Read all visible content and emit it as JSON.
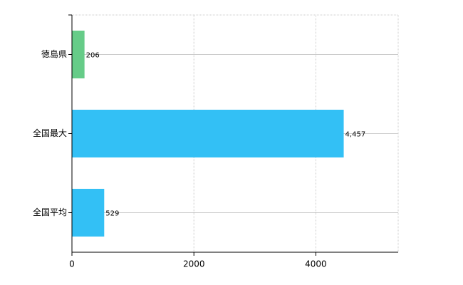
{
  "chart_data": {
    "type": "bar",
    "orientation": "horizontal",
    "categories": [
      "徳島県",
      "全国最大",
      "全国平均"
    ],
    "values": [
      206,
      4457,
      529
    ],
    "value_labels": [
      "206",
      "4,457",
      "529"
    ],
    "colors": [
      "#66cc88",
      "#33c0f5",
      "#33c0f5"
    ],
    "xlim": [
      0,
      5350
    ],
    "xticks": [
      0,
      2000,
      4000
    ],
    "grid": true
  }
}
